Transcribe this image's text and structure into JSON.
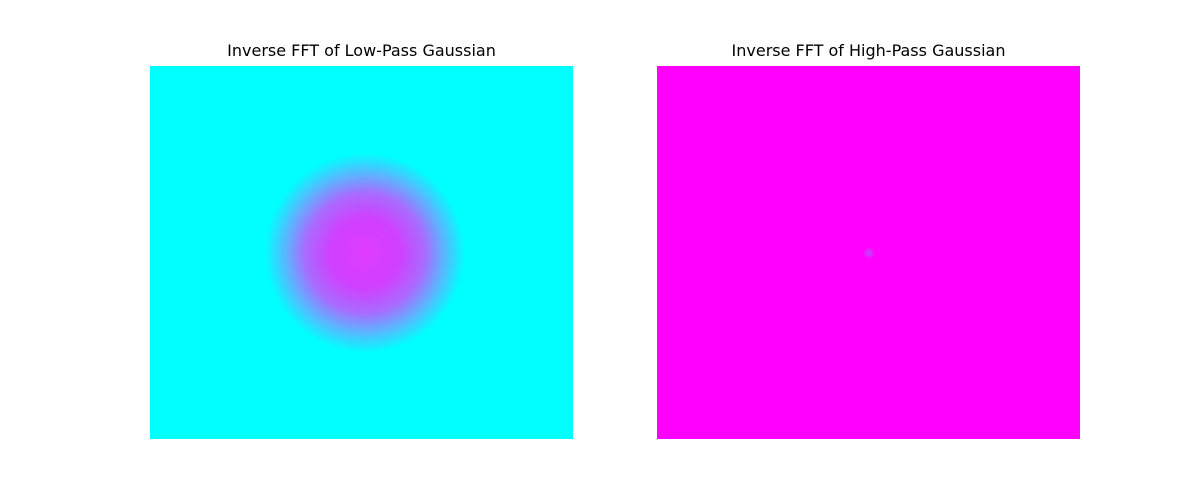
{
  "chart_data": [
    {
      "type": "heatmap",
      "title": "Inverse FFT of Low-Pass Gaussian",
      "colormap": "cool",
      "colormap_low": "#00ffff",
      "colormap_high": "#ff00ff",
      "pattern": "gaussian blob centered, high values at center fading to low at edges",
      "axes_visible": false
    },
    {
      "type": "heatmap",
      "title": "Inverse FFT of High-Pass Gaussian",
      "colormap": "cool",
      "colormap_low": "#00ffff",
      "colormap_high": "#ff00ff",
      "pattern": "uniform high values with a tiny dip at the center",
      "axes_visible": false
    }
  ]
}
